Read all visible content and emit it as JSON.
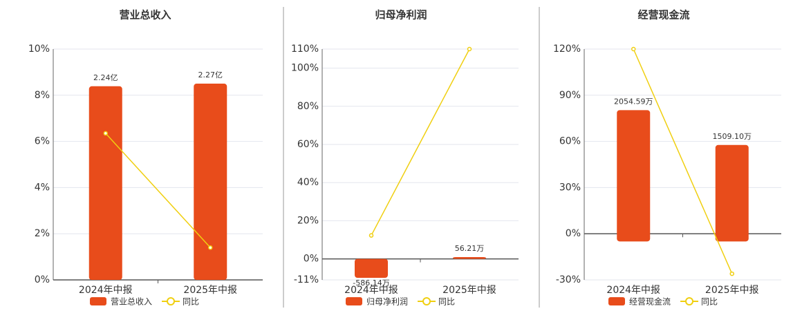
{
  "chart_data": [
    {
      "type": "bar",
      "title": "营业总收入",
      "categories": [
        "2024年中报",
        "2025年中报"
      ],
      "series": [
        {
          "name": "营业总收入",
          "type": "bar",
          "axis": "y2",
          "color": "#e84c1b",
          "values": [
            2.24,
            2.27
          ],
          "value_labels": [
            "2.24亿",
            "2.27亿"
          ]
        },
        {
          "name": "同比",
          "type": "line",
          "color": "#f0cf10",
          "values": [
            6.35,
            1.4
          ]
        }
      ],
      "ylim": [
        0,
        10
      ],
      "yticks": [
        {
          "value": 0,
          "label": "0%"
        },
        {
          "value": 2,
          "label": "2%"
        },
        {
          "value": 4,
          "label": "4%"
        },
        {
          "value": 6,
          "label": "6%"
        },
        {
          "value": 8,
          "label": "8%"
        },
        {
          "value": 10,
          "label": "10%"
        }
      ],
      "y2lim": [
        0,
        2.67
      ],
      "grid": true
    },
    {
      "type": "bar",
      "title": "归母净利润",
      "categories": [
        "2024年中报",
        "2025年中报"
      ],
      "series": [
        {
          "name": "归母净利润",
          "type": "bar",
          "axis": "y2",
          "color": "#e84c1b",
          "values": [
            -586.14,
            56.21
          ],
          "value_labels": [
            "-586.14万",
            "56.21万"
          ]
        },
        {
          "name": "同比",
          "type": "line",
          "color": "#f0cf10",
          "values": [
            12.3,
            110
          ]
        }
      ],
      "ylim": [
        -11,
        110
      ],
      "yticks": [
        {
          "value": -11,
          "label": "-11%"
        },
        {
          "value": 0,
          "label": "0%"
        },
        {
          "value": 20,
          "label": "20%"
        },
        {
          "value": 40,
          "label": "40%"
        },
        {
          "value": 60,
          "label": "60%"
        },
        {
          "value": 80,
          "label": "80%"
        },
        {
          "value": 100,
          "label": "100%"
        },
        {
          "value": 110,
          "label": "110%"
        }
      ],
      "y2lim": [
        -650,
        6500
      ],
      "grid": true
    },
    {
      "type": "bar",
      "title": "经营现金流",
      "categories": [
        "2024年中报",
        "2025年中报"
      ],
      "series": [
        {
          "name": "经营现金流",
          "type": "bar",
          "axis": "y2",
          "color": "#e84c1b",
          "values": [
            2054.59,
            1509.1
          ],
          "value_labels": [
            "2054.59万",
            "1509.10万"
          ]
        },
        {
          "name": "同比",
          "type": "line",
          "color": "#f0cf10",
          "values": [
            120,
            -26
          ]
        }
      ],
      "ylim": [
        -30,
        120
      ],
      "yticks": [
        {
          "value": -30,
          "label": "-30%"
        },
        {
          "value": 0,
          "label": "0%"
        },
        {
          "value": 30,
          "label": "30%"
        },
        {
          "value": 60,
          "label": "60%"
        },
        {
          "value": 90,
          "label": "90%"
        },
        {
          "value": 120,
          "label": "120%"
        }
      ],
      "y2lim": [
        -602,
        3010
      ],
      "grid": true
    }
  ]
}
